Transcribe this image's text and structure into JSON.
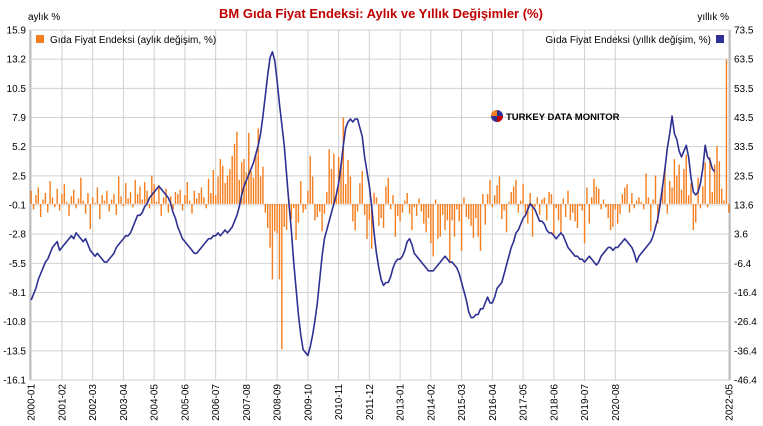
{
  "chart_data": {
    "type": "bar+line",
    "title": "BM Gıda Fiyat Endeksi: Aylık ve Yıllık Değişimler (%)",
    "left_axis_label": "aylık %",
    "right_axis_label": "yıllık %",
    "watermark": "TURKEY DATA MONITOR",
    "legend_left": "Gıda Fiyat Endeksi (aylık değişim, %)",
    "legend_right": "Gıda Fiyat Endeksi (yıllık değişim, %)",
    "left_ticks": [
      "15.9",
      "13.2",
      "10.5",
      "7.9",
      "5.2",
      "2.5",
      "-0.1",
      "-2.8",
      "-5.5",
      "-8.1",
      "-10.8",
      "-13.5",
      "-16.1"
    ],
    "right_ticks": [
      "73.5",
      "63.5",
      "53.5",
      "43.5",
      "33.5",
      "23.5",
      "13.6",
      "3.6",
      "-6.4",
      "-16.4",
      "-26.4",
      "-36.4",
      "-46.4"
    ],
    "ylim_left": [
      -16.1,
      15.9
    ],
    "ylim_right": [
      -46.4,
      73.5
    ],
    "x_labels": [
      "2000-01",
      "2001-02",
      "2002-03",
      "2003-04",
      "2004-05",
      "2005-06",
      "2006-07",
      "2007-08",
      "2008-09",
      "2009-10",
      "2010-11",
      "2011-12",
      "2013-01",
      "2014-02",
      "2015-03",
      "2016-04",
      "2017-05",
      "2018-06",
      "2019-07",
      "2020-08",
      "2022-05"
    ],
    "grid": true,
    "legend_placement": "top",
    "colors": {
      "bars": "#f47f20",
      "line": "#2e3192",
      "title": "#c00000",
      "grid": "#d0d0d0"
    },
    "series": [
      {
        "name": "Gıda Fiyat Endeksi (aylık değişim, %)",
        "axis": "left",
        "type": "bar",
        "values": [
          1.2,
          -0.5,
          0.8,
          1.5,
          -1.2,
          0.4,
          1.0,
          -0.8,
          2.1,
          0.6,
          -0.3,
          1.4,
          -0.6,
          0.9,
          1.8,
          0.2,
          -1.1,
          0.7,
          1.3,
          -0.4,
          0.5,
          2.4,
          0.3,
          -0.9,
          1.0,
          -2.3,
          0.6,
          0.1,
          1.5,
          -1.4,
          0.8,
          0.3,
          1.2,
          -0.7,
          0.4,
          0.9,
          -1.0,
          2.5,
          0.7,
          -0.2,
          1.9,
          0.5,
          1.1,
          -0.3,
          2.2,
          0.9,
          1.6,
          0.4,
          2.0,
          1.2,
          -0.4,
          2.6,
          1.8,
          0.2,
          1.7,
          -1.1,
          0.6,
          1.4,
          -0.8,
          0.7,
          -0.5,
          1.1,
          0.9,
          1.3,
          -0.6,
          0.8,
          2.0,
          0.3,
          -0.9,
          1.2,
          0.5,
          1.0,
          1.5,
          0.6,
          -0.4,
          2.3,
          1.0,
          3.1,
          0.8,
          2.5,
          4.1,
          3.5,
          1.9,
          2.6,
          3.2,
          4.4,
          5.5,
          6.6,
          2.2,
          3.8,
          4.1,
          2.9,
          6.5,
          3.0,
          2.4,
          4.5,
          6.9,
          2.5,
          3.4,
          -0.8,
          -2.2,
          -4.0,
          -6.9,
          -2.5,
          -2.7,
          -6.9,
          -13.3,
          -2.1,
          -2.4,
          0.5,
          -1.4,
          -0.4,
          -3.3,
          -1.7,
          2.1,
          -0.8,
          -0.5,
          1.2,
          4.4,
          2.5,
          -1.5,
          -1.2,
          -0.7,
          -2.5,
          -0.9,
          1.1,
          5.0,
          3.2,
          4.6,
          0.8,
          4.3,
          3.6,
          7.9,
          1.8,
          4.0,
          2.5,
          -1.6,
          -2.4,
          -0.7,
          1.9,
          3.0,
          -1.0,
          -3.2,
          -1.5,
          -4.1,
          1.0,
          0.6,
          -2.0,
          -1.3,
          -2.2,
          1.6,
          2.4,
          -0.5,
          0.8,
          -3.0,
          -1.1,
          -1.6,
          -0.8,
          0.3,
          1.0,
          -0.9,
          -2.4,
          -0.3,
          -1.1,
          0.5,
          -0.7,
          -1.8,
          -2.6,
          -1.3,
          -3.6,
          -4.8,
          0.4,
          -3.2,
          -3.0,
          -1.0,
          -2.4,
          -1.5,
          -5.2,
          -1.5,
          -3.0,
          -0.5,
          -1.6,
          -4.3,
          0.6,
          -1.2,
          -1.4,
          -2.0,
          -3.1,
          -1.3,
          -3.0,
          -4.3,
          0.9,
          -1.9,
          0.9,
          2.2,
          -0.3,
          0.8,
          1.7,
          2.5,
          -1.4,
          -0.6,
          -2.6,
          0.2,
          1.1,
          1.6,
          2.2,
          -0.8,
          0.3,
          1.8,
          -0.9,
          -1.8,
          1.0,
          -3.0,
          -0.3,
          0.6,
          -1.0,
          0.4,
          0.6,
          -1.5,
          1.1,
          0.9,
          -2.8,
          -0.4,
          -1.5,
          -2.8,
          0.5,
          -1.2,
          1.2,
          -1.5,
          -0.8,
          -1.6,
          -2.2,
          -0.2,
          -0.6,
          -3.6,
          1.5,
          -1.8,
          0.6,
          2.3,
          1.6,
          1.4,
          -0.5,
          0.4,
          -0.3,
          -1.3,
          -2.4,
          -2.1,
          -0.5,
          -1.8,
          -0.9,
          0.9,
          1.5,
          1.8,
          -0.8,
          1.0,
          -0.4,
          0.3,
          0.6,
          0.2,
          -0.5,
          2.8,
          0.6,
          -2.5,
          0.4,
          2.6,
          -1.8,
          0.5,
          1.7,
          3.3,
          -0.9,
          2.1,
          1.5,
          4.1,
          2.6,
          3.6,
          1.3,
          3.2,
          4.5,
          0.8,
          1.9,
          -2.4,
          -1.7,
          2.4,
          -0.4,
          1.6,
          3.8,
          -0.3,
          4.3,
          1.1,
          3.6,
          5.3,
          3.9,
          1.4,
          0.3,
          13.2,
          -0.8
        ]
      },
      {
        "name": "Gıda Fiyat Endeksi (yıllık değişim, %)",
        "axis": "right",
        "type": "line",
        "values": [
          -19,
          -17,
          -15,
          -12,
          -10,
          -8,
          -6,
          -5,
          -3,
          -1,
          0,
          1,
          -2,
          -1,
          0,
          1,
          2,
          3,
          2,
          4,
          3,
          2,
          1,
          2,
          0,
          -2,
          -3,
          -4,
          -3,
          -4,
          -5,
          -6,
          -6,
          -5,
          -4,
          -3,
          -1,
          0,
          1,
          2,
          3,
          3,
          4,
          6,
          8,
          10,
          10,
          11,
          13,
          14,
          16,
          17,
          18,
          19,
          20,
          19,
          18,
          17,
          16,
          14,
          11,
          9,
          6,
          4,
          2,
          1,
          0,
          -1,
          -2,
          -3,
          -3,
          -2,
          -1,
          0,
          1,
          2,
          2,
          3,
          3,
          4,
          3,
          4,
          5,
          4,
          5,
          6,
          8,
          10,
          13,
          17,
          20,
          22,
          24,
          26,
          28,
          31,
          34,
          38,
          44,
          51,
          58,
          64,
          66,
          63,
          56,
          48,
          41,
          34,
          24,
          14,
          5,
          -6,
          -15,
          -24,
          -31,
          -36,
          -37,
          -38,
          -35,
          -31,
          -26,
          -20,
          -12,
          -4,
          2,
          5,
          8,
          11,
          14,
          17,
          21,
          27,
          34,
          40,
          42,
          43,
          42,
          43,
          43,
          40,
          37,
          30,
          25,
          20,
          13,
          4,
          -3,
          -8,
          -12,
          -14,
          -13,
          -13,
          -11,
          -8,
          -6,
          -5,
          -5,
          -4,
          -2,
          1,
          2,
          0,
          -3,
          -4,
          -5,
          -6,
          -7,
          -8,
          -9,
          -9,
          -9,
          -8,
          -7,
          -6,
          -5,
          -4,
          -5,
          -6,
          -6,
          -7,
          -8,
          -10,
          -13,
          -16,
          -19,
          -23,
          -25,
          -25,
          -24,
          -24,
          -22,
          -22,
          -20,
          -18,
          -20,
          -20,
          -18,
          -15,
          -14,
          -13,
          -10,
          -7,
          -4,
          -1,
          1,
          4,
          5,
          7,
          9,
          10,
          12,
          14,
          13,
          12,
          10,
          8,
          8,
          7,
          5,
          4,
          4,
          3,
          2,
          3,
          4,
          3,
          1,
          -1,
          -2,
          -3,
          -4,
          -4,
          -5,
          -5,
          -6,
          -5,
          -4,
          -5,
          -6,
          -7,
          -6,
          -4,
          -3,
          -2,
          -1,
          -1,
          -2,
          -1,
          -1,
          0,
          1,
          2,
          1,
          0,
          -1,
          -3,
          -6,
          -4,
          -3,
          -2,
          -1,
          0,
          1,
          3,
          6,
          9,
          14,
          20,
          26,
          33,
          38,
          44,
          38,
          36,
          32,
          30,
          32,
          34,
          30,
          23,
          18,
          17,
          18,
          21,
          26,
          34,
          30,
          29,
          26,
          25
        ]
      }
    ]
  }
}
